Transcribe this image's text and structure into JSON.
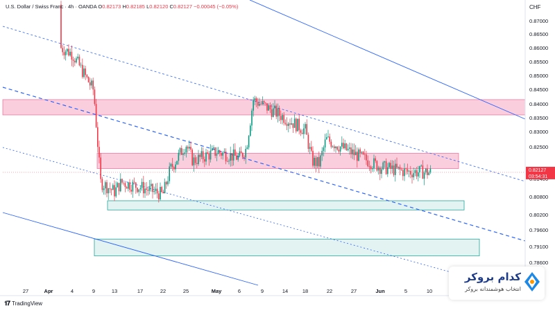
{
  "legend": {
    "symbol": "U.S. Dollar / Swiss Franc · 4h · OANDA",
    "o_label": "O",
    "o_value": "0.82173",
    "h_label": "H",
    "h_value": "0.82185",
    "l_label": "L",
    "l_value": "0.82120",
    "c_label": "C",
    "c_value": "0.82127",
    "change": "−0.00045 (−0.05%)"
  },
  "currency": "CHF",
  "price_badge": {
    "value": "0.82127",
    "timer": "03:54:31",
    "color": "#f23645"
  },
  "branding": {
    "tradingview": "TradingView"
  },
  "broker": {
    "name": "کدام بروکر",
    "tagline": "انتخاب هوشمندانه بروکر",
    "icon": "broker-logo-icon"
  },
  "colors": {
    "up": "#089981",
    "down": "#f23645",
    "channel": "#2962ff",
    "resistance_zone": "#e91e63",
    "support_zone": "#26a69a"
  },
  "chart_data": {
    "type": "candlestick",
    "ylim": [
      0.7815,
      0.8775
    ],
    "y_ticks": [
      "0.87000",
      "0.86500",
      "0.86000",
      "0.85500",
      "0.85000",
      "0.84500",
      "0.84000",
      "0.83500",
      "0.83000",
      "0.82500",
      "0.81400",
      "0.80800",
      "0.80200",
      "0.79600",
      "0.79100",
      "0.78600"
    ],
    "x_ticks": [
      "27",
      "Apr",
      "4",
      "9",
      "13",
      "17",
      "22",
      "25",
      "May",
      "6",
      "9",
      "14",
      "18",
      "22",
      "27",
      "Jun",
      "5",
      "10"
    ],
    "price_path": [
      [
        "27",
        0.876
      ],
      [
        "Apr",
        0.864
      ],
      [
        "4",
        0.86
      ],
      [
        "9",
        0.848
      ],
      [
        "9",
        0.818
      ],
      [
        "13",
        0.815
      ],
      [
        "13",
        0.818
      ],
      [
        "17",
        0.8165
      ],
      [
        "22",
        0.814
      ],
      [
        "22",
        0.822
      ],
      [
        "25",
        0.8305
      ],
      [
        "25",
        0.825
      ],
      [
        "May",
        0.828
      ],
      [
        "6",
        0.826
      ],
      [
        "9",
        0.829
      ],
      [
        "9",
        0.845
      ],
      [
        "14",
        0.839
      ],
      [
        "18",
        0.835
      ],
      [
        "22",
        0.825
      ],
      [
        "27",
        0.824
      ],
      [
        "27",
        0.832
      ],
      [
        "Jun",
        0.823
      ],
      [
        "5",
        0.8215
      ],
      [
        "10",
        0.8213
      ]
    ],
    "zones": [
      {
        "name": "resistance-high",
        "from": "27",
        "to": "right-edge",
        "low": 0.84,
        "high": 0.845
      },
      {
        "name": "resistance-mid",
        "from": "9",
        "to": "Jun+",
        "low": 0.8225,
        "high": 0.8275
      },
      {
        "name": "support-mid",
        "from": "13",
        "to": "Jun+",
        "low": 0.809,
        "high": 0.812
      },
      {
        "name": "support-low",
        "from": "9",
        "to": "10+",
        "low": 0.794,
        "high": 0.7995
      }
    ]
  }
}
